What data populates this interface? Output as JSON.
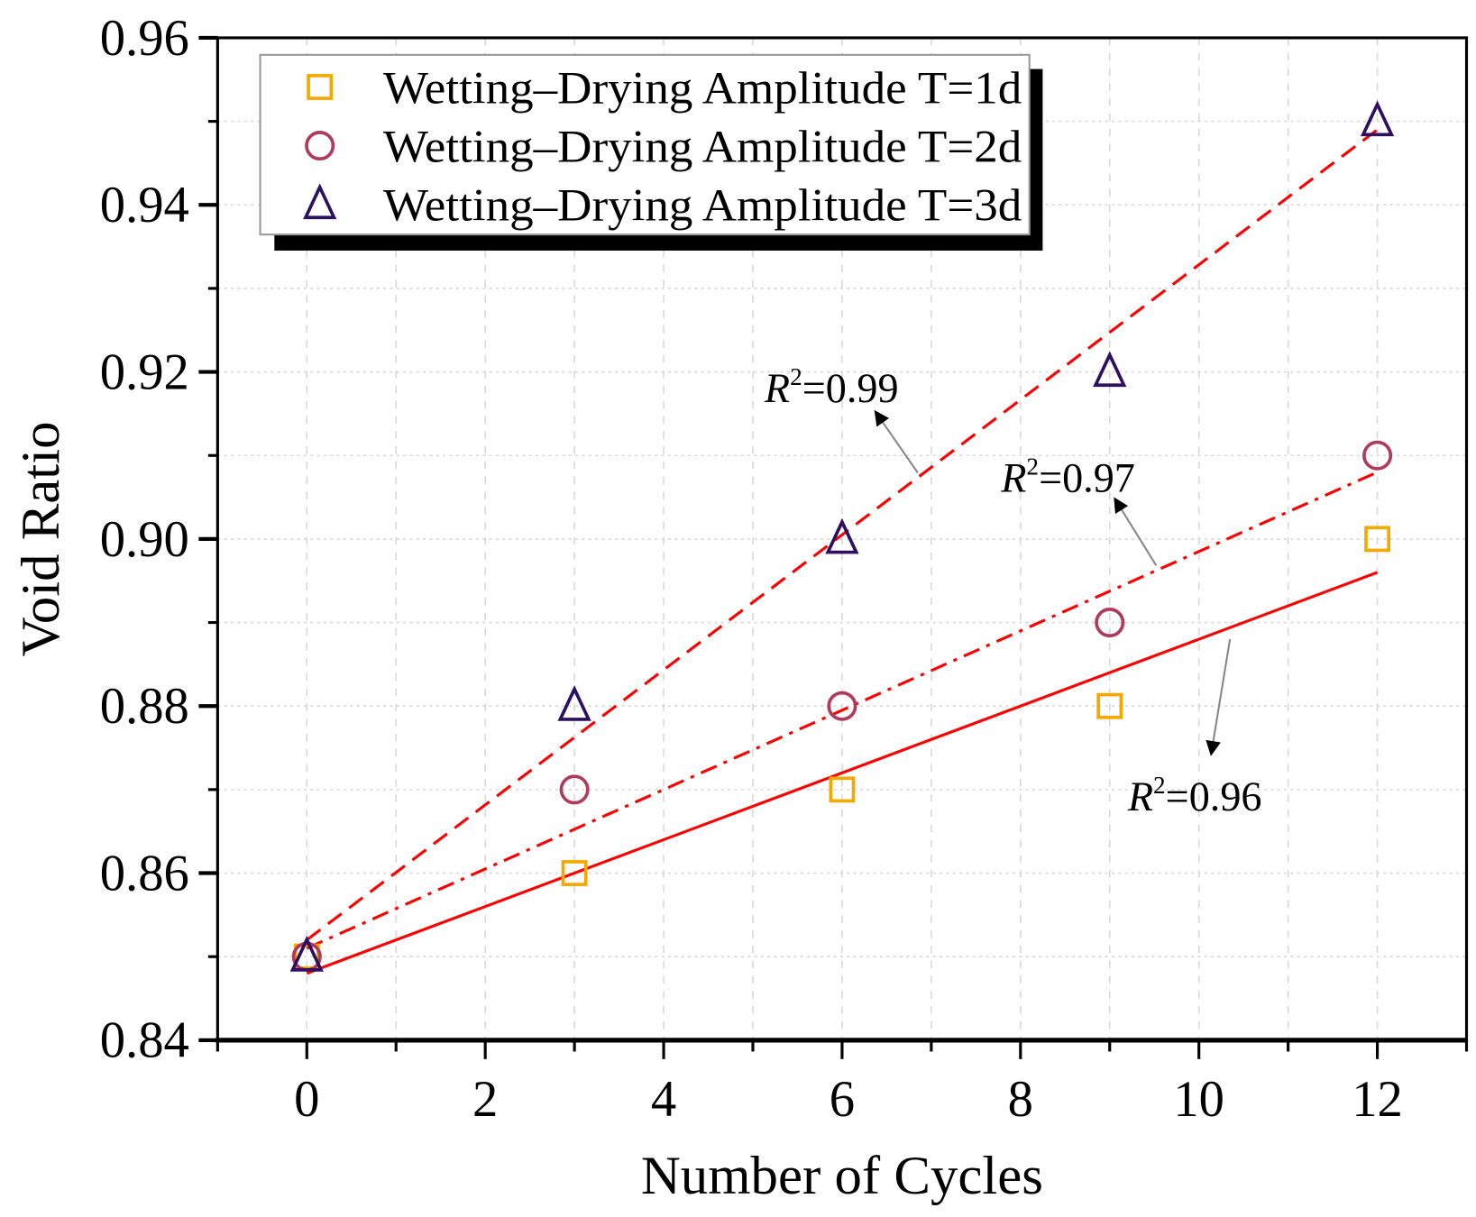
{
  "chart_data": {
    "type": "scatter",
    "title": "",
    "xlabel": "Number of Cycles",
    "ylabel": "Void Ratio",
    "xlim": [
      -1,
      13
    ],
    "ylim": [
      0.84,
      0.96
    ],
    "xticks": [
      0,
      2,
      4,
      6,
      8,
      10,
      12
    ],
    "yticks": [
      "0.84",
      "0.86",
      "0.88",
      "0.90",
      "0.92",
      "0.94",
      "0.96"
    ],
    "grid": true,
    "legend_position": "top-left",
    "series": [
      {
        "name": "Wetting–Drying Amplitude T=1d",
        "marker": "square",
        "color": "#F5A800",
        "x": [
          0,
          3,
          6,
          9,
          12
        ],
        "y": [
          0.85,
          0.86,
          0.87,
          0.88,
          0.9
        ],
        "fit": {
          "style": "solid",
          "y0": 0.848,
          "y12": 0.896,
          "r2_label": "=0.96"
        }
      },
      {
        "name": "Wetting–Drying Amplitude T=2d",
        "marker": "circle",
        "color": "#B03A5B",
        "x": [
          0,
          3,
          6,
          9,
          12
        ],
        "y": [
          0.85,
          0.87,
          0.88,
          0.89,
          0.91
        ],
        "fit": {
          "style": "dashdot",
          "y0": 0.851,
          "y12": 0.908,
          "r2_label": "=0.97"
        }
      },
      {
        "name": "Wetting–Drying Amplitude T=3d",
        "marker": "triangle",
        "color": "#2E1060",
        "x": [
          0,
          3,
          6,
          9,
          12
        ],
        "y": [
          0.85,
          0.88,
          0.9,
          0.92,
          0.95
        ],
        "fit": {
          "style": "dashed",
          "y0": 0.852,
          "y12": 0.949,
          "r2_label": "=0.99"
        }
      }
    ],
    "fit_color": "#FF0000",
    "r2_prefix": "R"
  }
}
